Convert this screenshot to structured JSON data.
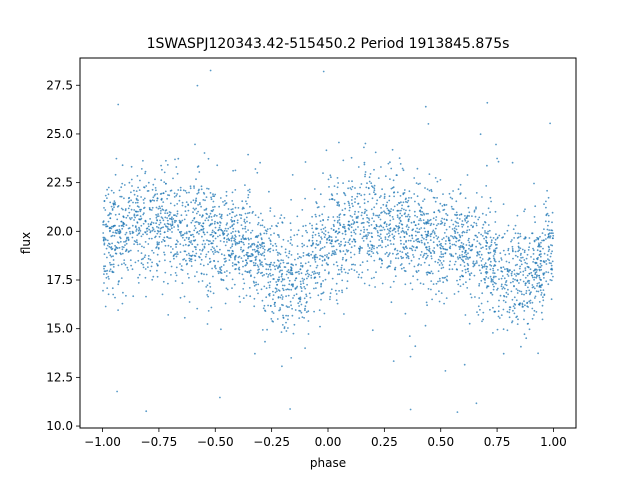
{
  "chart_data": {
    "type": "scatter",
    "title": "1SWASPJ120343.42-515450.2 Period 1913845.875s",
    "xlabel": "phase",
    "ylabel": "flux",
    "xlim": [
      -1.1,
      1.1
    ],
    "ylim": [
      9.9,
      28.9
    ],
    "x_ticks": [
      -1.0,
      -0.75,
      -0.5,
      -0.25,
      0.0,
      0.25,
      0.5,
      0.75,
      1.0
    ],
    "x_tick_labels": [
      "−1.00",
      "−0.75",
      "−0.50",
      "−0.25",
      "0.00",
      "0.25",
      "0.50",
      "0.75",
      "1.00"
    ],
    "y_ticks": [
      10.0,
      12.5,
      15.0,
      17.5,
      20.0,
      22.5,
      25.0,
      27.5
    ],
    "y_tick_labels": [
      "10.0",
      "12.5",
      "15.0",
      "17.5",
      "20.0",
      "22.5",
      "25.0",
      "27.5"
    ],
    "grid": false,
    "legend": "none",
    "marker_color": "#1f77b4",
    "series": [
      {
        "x_range": [
          -1.0,
          1.0
        ],
        "mean_flux_profile": [
          [
            -1.0,
            19.6
          ],
          [
            -0.9,
            19.8
          ],
          [
            -0.8,
            20.4
          ],
          [
            -0.7,
            20.3
          ],
          [
            -0.6,
            19.9
          ],
          [
            -0.5,
            19.6
          ],
          [
            -0.4,
            19.4
          ],
          [
            -0.3,
            18.6
          ],
          [
            -0.2,
            17.6
          ],
          [
            -0.15,
            17.3
          ],
          [
            -0.1,
            17.8
          ],
          [
            -0.05,
            18.6
          ],
          [
            0.0,
            19.5
          ],
          [
            0.1,
            20.0
          ],
          [
            0.2,
            20.4
          ],
          [
            0.3,
            20.3
          ],
          [
            0.4,
            19.9
          ],
          [
            0.5,
            19.6
          ],
          [
            0.6,
            19.3
          ],
          [
            0.7,
            18.6
          ],
          [
            0.8,
            17.7
          ],
          [
            0.85,
            17.4
          ],
          [
            0.9,
            17.8
          ],
          [
            0.95,
            18.5
          ],
          [
            1.0,
            19.5
          ]
        ],
        "flux_min": 10.7,
        "flux_max": 28.4
      }
    ]
  }
}
